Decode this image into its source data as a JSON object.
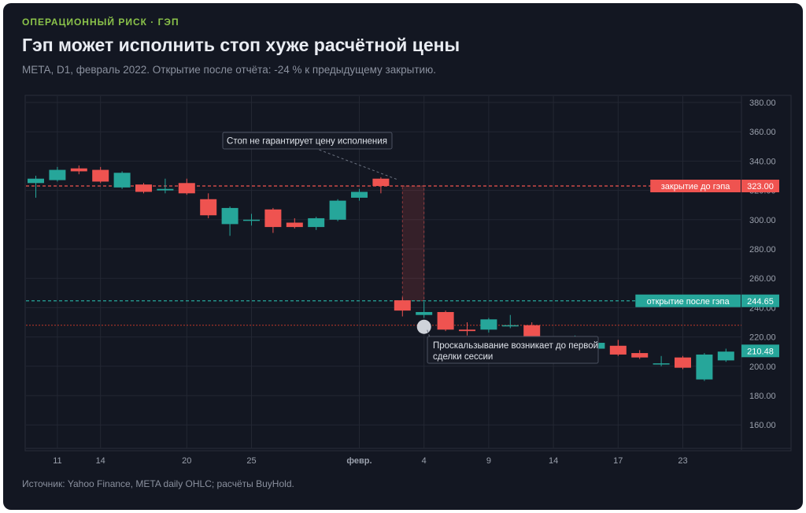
{
  "header": {
    "kicker": "ОПЕРАЦИОННЫЙ РИСК · ГЭП",
    "title": "Гэп может исполнить стоп хуже расчётной цены",
    "subtitle": "META, D1, февраль 2022. Открытие после отчёта: -24 % к предыдущему закрытию."
  },
  "footer": {
    "source": "Источник: Yahoo Finance, META daily OHLC; расчёты BuyHold."
  },
  "colors": {
    "up": "#26a69a",
    "down": "#ef5350",
    "grid": "#232733",
    "axis_text": "#9aa0ac",
    "stop_line": "#c0392b"
  },
  "chart_data": {
    "type": "candlestick",
    "ylim": [
      140,
      385
    ],
    "grid": true,
    "y_ticks": [
      "160.00",
      "180.00",
      "200.00",
      "220.00",
      "240.00",
      "260.00",
      "280.00",
      "300.00",
      "320.00",
      "340.00",
      "360.00",
      "380.00"
    ],
    "x_ticks": [
      {
        "label": "11",
        "index": 1
      },
      {
        "label": "14",
        "index": 3
      },
      {
        "label": "20",
        "index": 7
      },
      {
        "label": "25",
        "index": 10
      },
      {
        "label": "февр.",
        "index": 15
      },
      {
        "label": "4",
        "index": 18
      },
      {
        "label": "9",
        "index": 21
      },
      {
        "label": "14",
        "index": 24
      },
      {
        "label": "17",
        "index": 27
      },
      {
        "label": "23",
        "index": 30
      }
    ],
    "candles": [
      {
        "o": 325,
        "h": 330,
        "l": 315,
        "c": 328
      },
      {
        "o": 327,
        "h": 336,
        "l": 326,
        "c": 334
      },
      {
        "o": 335,
        "h": 337,
        "l": 331,
        "c": 333
      },
      {
        "o": 334,
        "h": 336,
        "l": 325,
        "c": 326
      },
      {
        "o": 322,
        "h": 333,
        "l": 321,
        "c": 332
      },
      {
        "o": 324,
        "h": 325,
        "l": 318,
        "c": 319
      },
      {
        "o": 320,
        "h": 328,
        "l": 318,
        "c": 321
      },
      {
        "o": 325,
        "h": 328,
        "l": 317,
        "c": 318
      },
      {
        "o": 314,
        "h": 318,
        "l": 301,
        "c": 303
      },
      {
        "o": 297,
        "h": 309,
        "l": 289,
        "c": 308
      },
      {
        "o": 300,
        "h": 304,
        "l": 296,
        "c": 300
      },
      {
        "o": 307,
        "h": 308,
        "l": 291,
        "c": 295
      },
      {
        "o": 298,
        "h": 301,
        "l": 294,
        "c": 295
      },
      {
        "o": 295,
        "h": 302,
        "l": 293,
        "c": 301
      },
      {
        "o": 300,
        "h": 314,
        "l": 299,
        "c": 313
      },
      {
        "o": 315,
        "h": 321,
        "l": 313,
        "c": 319
      },
      {
        "o": 328,
        "h": 329,
        "l": 318,
        "c": 323
      },
      {
        "o": 245,
        "h": 247,
        "l": 234,
        "c": 238
      },
      {
        "o": 235,
        "h": 244,
        "l": 233,
        "c": 237
      },
      {
        "o": 237,
        "h": 238,
        "l": 224,
        "c": 225
      },
      {
        "o": 225,
        "h": 230,
        "l": 221,
        "c": 224
      },
      {
        "o": 225,
        "h": 233,
        "l": 223,
        "c": 232
      },
      {
        "o": 228,
        "h": 235,
        "l": 226,
        "c": 228
      },
      {
        "o": 228,
        "h": 230,
        "l": 217,
        "c": 219
      },
      {
        "o": 219,
        "h": 219,
        "l": 216,
        "c": 218
      },
      {
        "o": 220,
        "h": 221,
        "l": 218,
        "c": 220
      },
      {
        "o": 212,
        "h": 217,
        "l": 210,
        "c": 216
      },
      {
        "o": 214,
        "h": 218,
        "l": 207,
        "c": 208
      },
      {
        "o": 209,
        "h": 211,
        "l": 205,
        "c": 206
      },
      {
        "o": 202,
        "h": 207,
        "l": 200,
        "c": 202
      },
      {
        "o": 206,
        "h": 207,
        "l": 198,
        "c": 199
      },
      {
        "o": 191,
        "h": 209,
        "l": 190,
        "c": 208
      },
      {
        "o": 204,
        "h": 212,
        "l": 203,
        "c": 210
      }
    ],
    "levels": [
      {
        "name": "закрытие до гэпа",
        "value": 323.0,
        "label": "323.00",
        "color": "#ef5350"
      },
      {
        "name": "открытие после гэпа",
        "value": 244.65,
        "label": "244.65",
        "color": "#26a69a"
      }
    ],
    "stop_level": 228,
    "last_price": {
      "value": 210.48,
      "label": "210.48"
    },
    "gap": {
      "index": 17,
      "from": 323.0,
      "to": 244.65
    },
    "fill_marker": {
      "index": 18,
      "value": 228
    },
    "annotations": [
      {
        "text": "Стоп не гарантирует цену исполнения"
      },
      {
        "lines": [
          "Проскальзывание возникает до первой",
          "сделки сессии"
        ]
      }
    ]
  }
}
